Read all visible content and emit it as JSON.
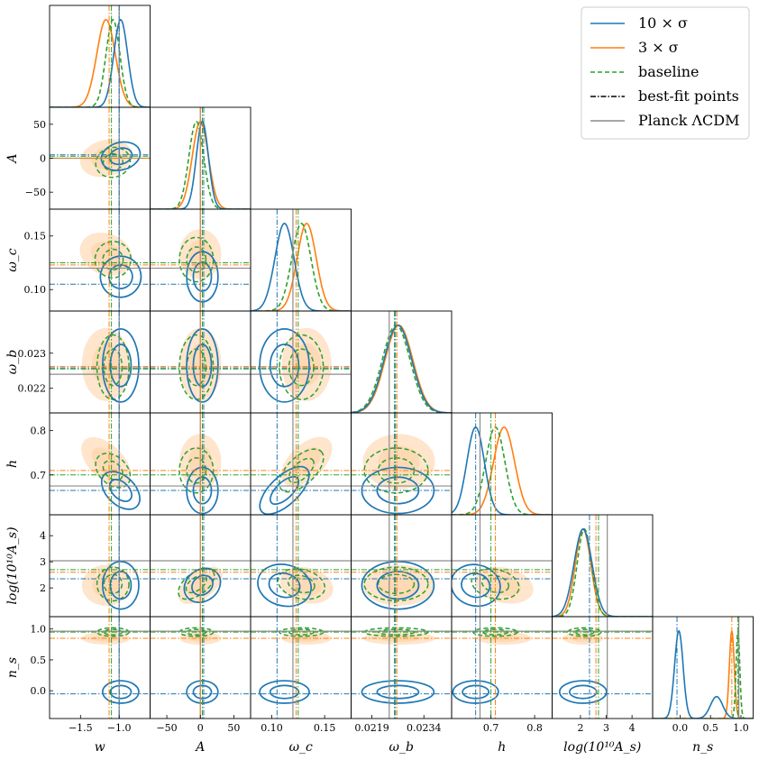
{
  "colors": {
    "blue": "#1f77b4",
    "orange": "#ff7f0e",
    "green": "#2ca02c",
    "black": "#000000",
    "gray": "#8c8c8c",
    "fill": "#fdd0a2"
  },
  "legend": {
    "placement": "top-right",
    "items": [
      {
        "label": "10 × σ",
        "style": "solid",
        "color": "#1f77b4"
      },
      {
        "label": "3 × σ",
        "style": "solid",
        "color": "#ff7f0e"
      },
      {
        "label": "baseline",
        "style": "dashed",
        "color": "#2ca02c"
      },
      {
        "label": "best-fit points",
        "style": "dashdot",
        "color": "#000000"
      },
      {
        "label": "Planck ΛCDM",
        "style": "solid",
        "color": "#8c8c8c"
      }
    ]
  },
  "chart_data": {
    "type": "corner",
    "parameters": [
      {
        "key": "w",
        "label": "w",
        "range": [
          -1.9,
          -0.6
        ],
        "ticks": [
          -1.5,
          -1.0
        ],
        "tick_labels": [
          "−1.5",
          "−1.0"
        ],
        "best_fit": {
          "10sigma": -1.0,
          "3sigma": -1.13,
          "baseline": -1.1
        },
        "planck": -1.0,
        "marginal": {
          "10sigma": {
            "peak": -0.98,
            "width": 0.09
          },
          "3sigma": {
            "peak": -1.17,
            "width": 0.12
          },
          "baseline": {
            "peak": -1.08,
            "width": 0.09
          }
        }
      },
      {
        "key": "A",
        "label": "A",
        "range": [
          -75,
          75
        ],
        "ticks": [
          -50,
          0,
          50
        ],
        "tick_labels": [
          "−50",
          "0",
          "50"
        ],
        "best_fit": {
          "10sigma": 5,
          "3sigma": 0,
          "baseline": 3
        },
        "planck": 0,
        "marginal": {
          "10sigma": {
            "peak": 3,
            "width": 9
          },
          "3sigma": {
            "peak": 0,
            "width": 12
          },
          "baseline": {
            "peak": -6,
            "width": 11
          }
        }
      },
      {
        "key": "omega_c",
        "label": "ω_c",
        "range": [
          0.08,
          0.175
        ],
        "ticks": [
          0.1,
          0.15
        ],
        "tick_labels": [
          "0.10",
          "0.15"
        ],
        "best_fit": {
          "10sigma": 0.105,
          "3sigma": 0.123,
          "baseline": 0.125
        },
        "planck": 0.12,
        "marginal": {
          "10sigma": {
            "peak": 0.112,
            "width": 0.009
          },
          "3sigma": {
            "peak": 0.133,
            "width": 0.009
          },
          "baseline": {
            "peak": 0.128,
            "width": 0.009
          }
        }
      },
      {
        "key": "omega_b",
        "label": "ω_b",
        "range": [
          0.0213,
          0.0242
        ],
        "ticks": [
          0.0219,
          0.0234
        ],
        "tick_labels": [
          "0.0219",
          "0.0234"
        ],
        "best_fit": {
          "10sigma": 0.02258,
          "3sigma": 0.02262,
          "baseline": 0.02255
        },
        "planck": 0.0224,
        "marginal": {
          "10sigma": {
            "peak": 0.02265,
            "width": 0.0004
          },
          "3sigma": {
            "peak": 0.02268,
            "width": 0.0004
          },
          "baseline": {
            "peak": 0.0226,
            "width": 0.0004
          }
        }
      },
      {
        "key": "h",
        "label": "h",
        "range": [
          0.61,
          0.84
        ],
        "ticks": [
          0.7,
          0.8
        ],
        "tick_labels": [
          "0.7",
          "0.8"
        ],
        "best_fit": {
          "10sigma": 0.665,
          "3sigma": 0.71,
          "baseline": 0.7
        },
        "planck": 0.675,
        "marginal": {
          "10sigma": {
            "peak": 0.665,
            "width": 0.02
          },
          "3sigma": {
            "peak": 0.73,
            "width": 0.024
          },
          "baseline": {
            "peak": 0.71,
            "width": 0.022
          }
        }
      },
      {
        "key": "logAs",
        "label": "log(10¹⁰A_s)",
        "range": [
          0.9,
          4.8
        ],
        "ticks": [
          2,
          3,
          4
        ],
        "tick_labels": [
          "2",
          "3",
          "4"
        ],
        "best_fit": {
          "10sigma": 2.35,
          "3sigma": 2.6,
          "baseline": 2.7
        },
        "planck": 3.04,
        "marginal": {
          "10sigma": {
            "peak": 2.1,
            "width": 0.35
          },
          "3sigma": {
            "peak": 2.1,
            "width": 0.3
          },
          "baseline": {
            "peak": 2.15,
            "width": 0.28
          }
        }
      },
      {
        "key": "n_s",
        "label": "n_s",
        "range": [
          -0.45,
          1.2
        ],
        "ticks": [
          0.0,
          0.5,
          1.0
        ],
        "tick_labels": [
          "0.0",
          "0.5",
          "1.0"
        ],
        "y_ticks": [
          0.0,
          0.5,
          1.0
        ],
        "y_tick_labels": [
          "0.0",
          "0.5",
          "1.0"
        ],
        "best_fit": {
          "10sigma": -0.05,
          "3sigma": 0.85,
          "baseline": 0.95
        },
        "planck": 0.965,
        "marginal": {
          "10sigma": {
            "peak": -0.02,
            "width": 0.07,
            "secondary": {
              "peak": 0.6,
              "width": 0.1,
              "height": 0.25
            }
          },
          "3sigma": {
            "peak": 0.85,
            "width": 0.04
          },
          "baseline": {
            "peak": 0.95,
            "width": 0.03
          }
        }
      }
    ],
    "y_ticks": {
      "A": {
        "ticks": [
          -50,
          0,
          50
        ],
        "labels": [
          "−50",
          "0",
          "50"
        ]
      },
      "omega_c": {
        "ticks": [
          0.1,
          0.15
        ],
        "labels": [
          "0.10",
          "0.15"
        ]
      },
      "omega_b": {
        "ticks": [
          0.022,
          0.023
        ],
        "labels": [
          "0.022",
          "0.023"
        ]
      },
      "h": {
        "ticks": [
          0.7,
          0.8
        ],
        "labels": [
          "0.7",
          "0.8"
        ]
      },
      "logAs": {
        "ticks": [
          2,
          3,
          4
        ],
        "labels": [
          "2",
          "3",
          "4"
        ]
      },
      "n_s": {
        "ticks": [
          0.0,
          0.5,
          1.0
        ],
        "labels": [
          "0.0",
          "0.5",
          "1.0"
        ]
      }
    },
    "correlations": {
      "w|h": -0.85,
      "w|omega_c": -0.4,
      "w|A": 0.3,
      "A|logAs": 0.75,
      "omega_c|h": 0.85,
      "h|logAs": -0.3,
      "omega_c|logAs": -0.3
    }
  }
}
